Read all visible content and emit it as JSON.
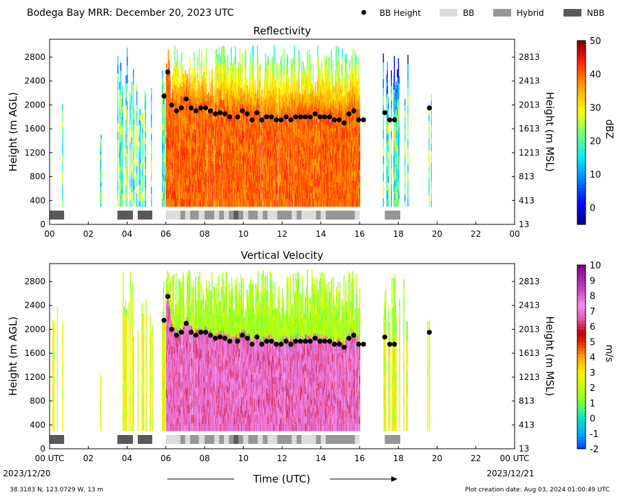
{
  "header": {
    "title": "Bodega Bay MRR:  December 20, 2023 UTC",
    "legend": [
      {
        "label": "BB Height",
        "kind": "dot",
        "color": "#000000"
      },
      {
        "label": "BB",
        "kind": "swatch",
        "color": "#dcdcdc"
      },
      {
        "label": "Hybrid",
        "kind": "swatch",
        "color": "#969696"
      },
      {
        "label": "NBB",
        "kind": "swatch",
        "color": "#595959"
      }
    ]
  },
  "footer": {
    "location": "38.3183 N, 123.0729 W, 13 m",
    "creation": "Plot creation date: Aug 03, 2024 01:00:49 UTC",
    "xlabel": "Time (UTC)",
    "start_date": "2023/12/20",
    "end_date": "2023/12/21"
  },
  "chart_data": [
    {
      "type": "heatmap",
      "title": "Reflectivity",
      "xlabel": "Time (UTC)",
      "ylabel": "Height (m AGL)",
      "ylabel_right": "Height (m MSL)",
      "xlim": [
        0,
        24
      ],
      "ylim": [
        0,
        3100
      ],
      "x_ticks": [
        "00",
        "02",
        "04",
        "06",
        "08",
        "10",
        "12",
        "14",
        "16",
        "18",
        "20",
        "22",
        "00"
      ],
      "y_ticks": [
        0,
        400,
        800,
        1200,
        1600,
        2000,
        2400,
        2800
      ],
      "y_ticks_right": [
        13,
        413,
        813,
        1213,
        1613,
        2013,
        2413,
        2813
      ],
      "colorbar": {
        "label": "dBZ",
        "min": -5,
        "max": 50,
        "ticks": [
          0,
          10,
          20,
          30,
          40,
          50
        ],
        "colormap": "jet"
      },
      "series": [
        {
          "name": "BB Height",
          "x": [
            5.9,
            6.1,
            6.3,
            6.55,
            6.8,
            7.05,
            7.3,
            7.55,
            7.8,
            8.05,
            8.3,
            8.55,
            8.8,
            9.05,
            9.3,
            9.7,
            9.95,
            10.2,
            10.45,
            10.7,
            10.95,
            11.2,
            11.45,
            11.7,
            11.95,
            12.2,
            12.45,
            12.7,
            12.95,
            13.2,
            13.45,
            13.7,
            13.95,
            14.2,
            14.45,
            14.7,
            14.95,
            15.2,
            15.45,
            15.7,
            15.95,
            16.2,
            17.3,
            17.55,
            17.8,
            19.6
          ],
          "y": [
            2150,
            2550,
            2000,
            1900,
            1950,
            2100,
            1950,
            1900,
            1950,
            1950,
            1900,
            1850,
            1870,
            1850,
            1800,
            1800,
            1900,
            1850,
            1750,
            1870,
            1750,
            1800,
            1800,
            1750,
            1750,
            1800,
            1750,
            1800,
            1800,
            1800,
            1800,
            1850,
            1800,
            1800,
            1800,
            1750,
            1750,
            1700,
            1850,
            1900,
            1750,
            1750,
            1870,
            1750,
            1750,
            1950
          ]
        }
      ],
      "bb_type": [
        {
          "start": 0.0,
          "end": 0.75,
          "type": "NBB"
        },
        {
          "start": 3.5,
          "end": 4.3,
          "type": "NBB"
        },
        {
          "start": 4.55,
          "end": 5.3,
          "type": "NBB"
        },
        {
          "start": 6.0,
          "end": 6.75,
          "type": "BB"
        },
        {
          "start": 6.75,
          "end": 7.0,
          "type": "Hybrid"
        },
        {
          "start": 7.0,
          "end": 7.25,
          "type": "BB"
        },
        {
          "start": 7.25,
          "end": 7.7,
          "type": "Hybrid"
        },
        {
          "start": 7.7,
          "end": 8.0,
          "type": "BB"
        },
        {
          "start": 8.0,
          "end": 8.5,
          "type": "Hybrid"
        },
        {
          "start": 8.5,
          "end": 8.75,
          "type": "BB"
        },
        {
          "start": 8.75,
          "end": 9.0,
          "type": "Hybrid"
        },
        {
          "start": 9.0,
          "end": 9.25,
          "type": "BB"
        },
        {
          "start": 9.25,
          "end": 9.5,
          "type": "Hybrid"
        },
        {
          "start": 9.5,
          "end": 9.75,
          "type": "NBB"
        },
        {
          "start": 9.75,
          "end": 10.0,
          "type": "Hybrid"
        },
        {
          "start": 10.0,
          "end": 10.25,
          "type": "BB"
        },
        {
          "start": 10.25,
          "end": 10.75,
          "type": "Hybrid"
        },
        {
          "start": 10.75,
          "end": 11.0,
          "type": "BB"
        },
        {
          "start": 11.0,
          "end": 11.25,
          "type": "Hybrid"
        },
        {
          "start": 11.25,
          "end": 11.75,
          "type": "BB"
        },
        {
          "start": 11.75,
          "end": 12.5,
          "type": "Hybrid"
        },
        {
          "start": 12.5,
          "end": 12.75,
          "type": "BB"
        },
        {
          "start": 12.75,
          "end": 13.0,
          "type": "Hybrid"
        },
        {
          "start": 13.0,
          "end": 13.75,
          "type": "BB"
        },
        {
          "start": 13.75,
          "end": 14.0,
          "type": "Hybrid"
        },
        {
          "start": 14.0,
          "end": 14.25,
          "type": "BB"
        },
        {
          "start": 14.25,
          "end": 15.75,
          "type": "Hybrid"
        },
        {
          "start": 15.75,
          "end": 16.0,
          "type": "BB"
        },
        {
          "start": 17.3,
          "end": 18.1,
          "type": "Hybrid"
        }
      ]
    },
    {
      "type": "heatmap",
      "title": "Vertical Velocity",
      "xlabel": "Time (UTC)",
      "ylabel": "Height (m AGL)",
      "ylabel_right": "Height (m MSL)",
      "xlim": [
        0,
        24
      ],
      "ylim": [
        0,
        3100
      ],
      "x_ticks": [
        "00 UTC",
        "02",
        "04",
        "06",
        "08",
        "10",
        "12",
        "14",
        "16",
        "18",
        "20",
        "22",
        "00 UTC"
      ],
      "y_ticks": [
        0,
        400,
        800,
        1200,
        1600,
        2000,
        2400,
        2800
      ],
      "y_ticks_right": [
        13,
        413,
        813,
        1213,
        1613,
        2013,
        2413,
        2813
      ],
      "colorbar": {
        "label": "m/s",
        "min": -2,
        "max": 10,
        "ticks": [
          -2,
          -1,
          0,
          1,
          2,
          3,
          4,
          5,
          6,
          7,
          8,
          9,
          10
        ],
        "colormap": "velocity"
      },
      "series": [
        {
          "name": "BB Height",
          "x": [
            5.9,
            6.1,
            6.3,
            6.55,
            6.8,
            7.05,
            7.3,
            7.55,
            7.8,
            8.05,
            8.3,
            8.55,
            8.8,
            9.05,
            9.3,
            9.7,
            9.95,
            10.2,
            10.45,
            10.7,
            10.95,
            11.2,
            11.45,
            11.7,
            11.95,
            12.2,
            12.45,
            12.7,
            12.95,
            13.2,
            13.45,
            13.7,
            13.95,
            14.2,
            14.45,
            14.7,
            14.95,
            15.2,
            15.45,
            15.7,
            15.95,
            16.2,
            17.3,
            17.55,
            17.8,
            19.6
          ],
          "y": [
            2150,
            2550,
            2000,
            1900,
            1950,
            2100,
            1950,
            1900,
            1950,
            1950,
            1900,
            1850,
            1870,
            1850,
            1800,
            1800,
            1900,
            1850,
            1750,
            1870,
            1750,
            1800,
            1800,
            1750,
            1750,
            1800,
            1750,
            1800,
            1800,
            1800,
            1800,
            1850,
            1800,
            1800,
            1800,
            1750,
            1750,
            1700,
            1850,
            1900,
            1750,
            1750,
            1870,
            1750,
            1750,
            1950
          ]
        }
      ],
      "bb_type": "same as Reflectivity"
    }
  ]
}
